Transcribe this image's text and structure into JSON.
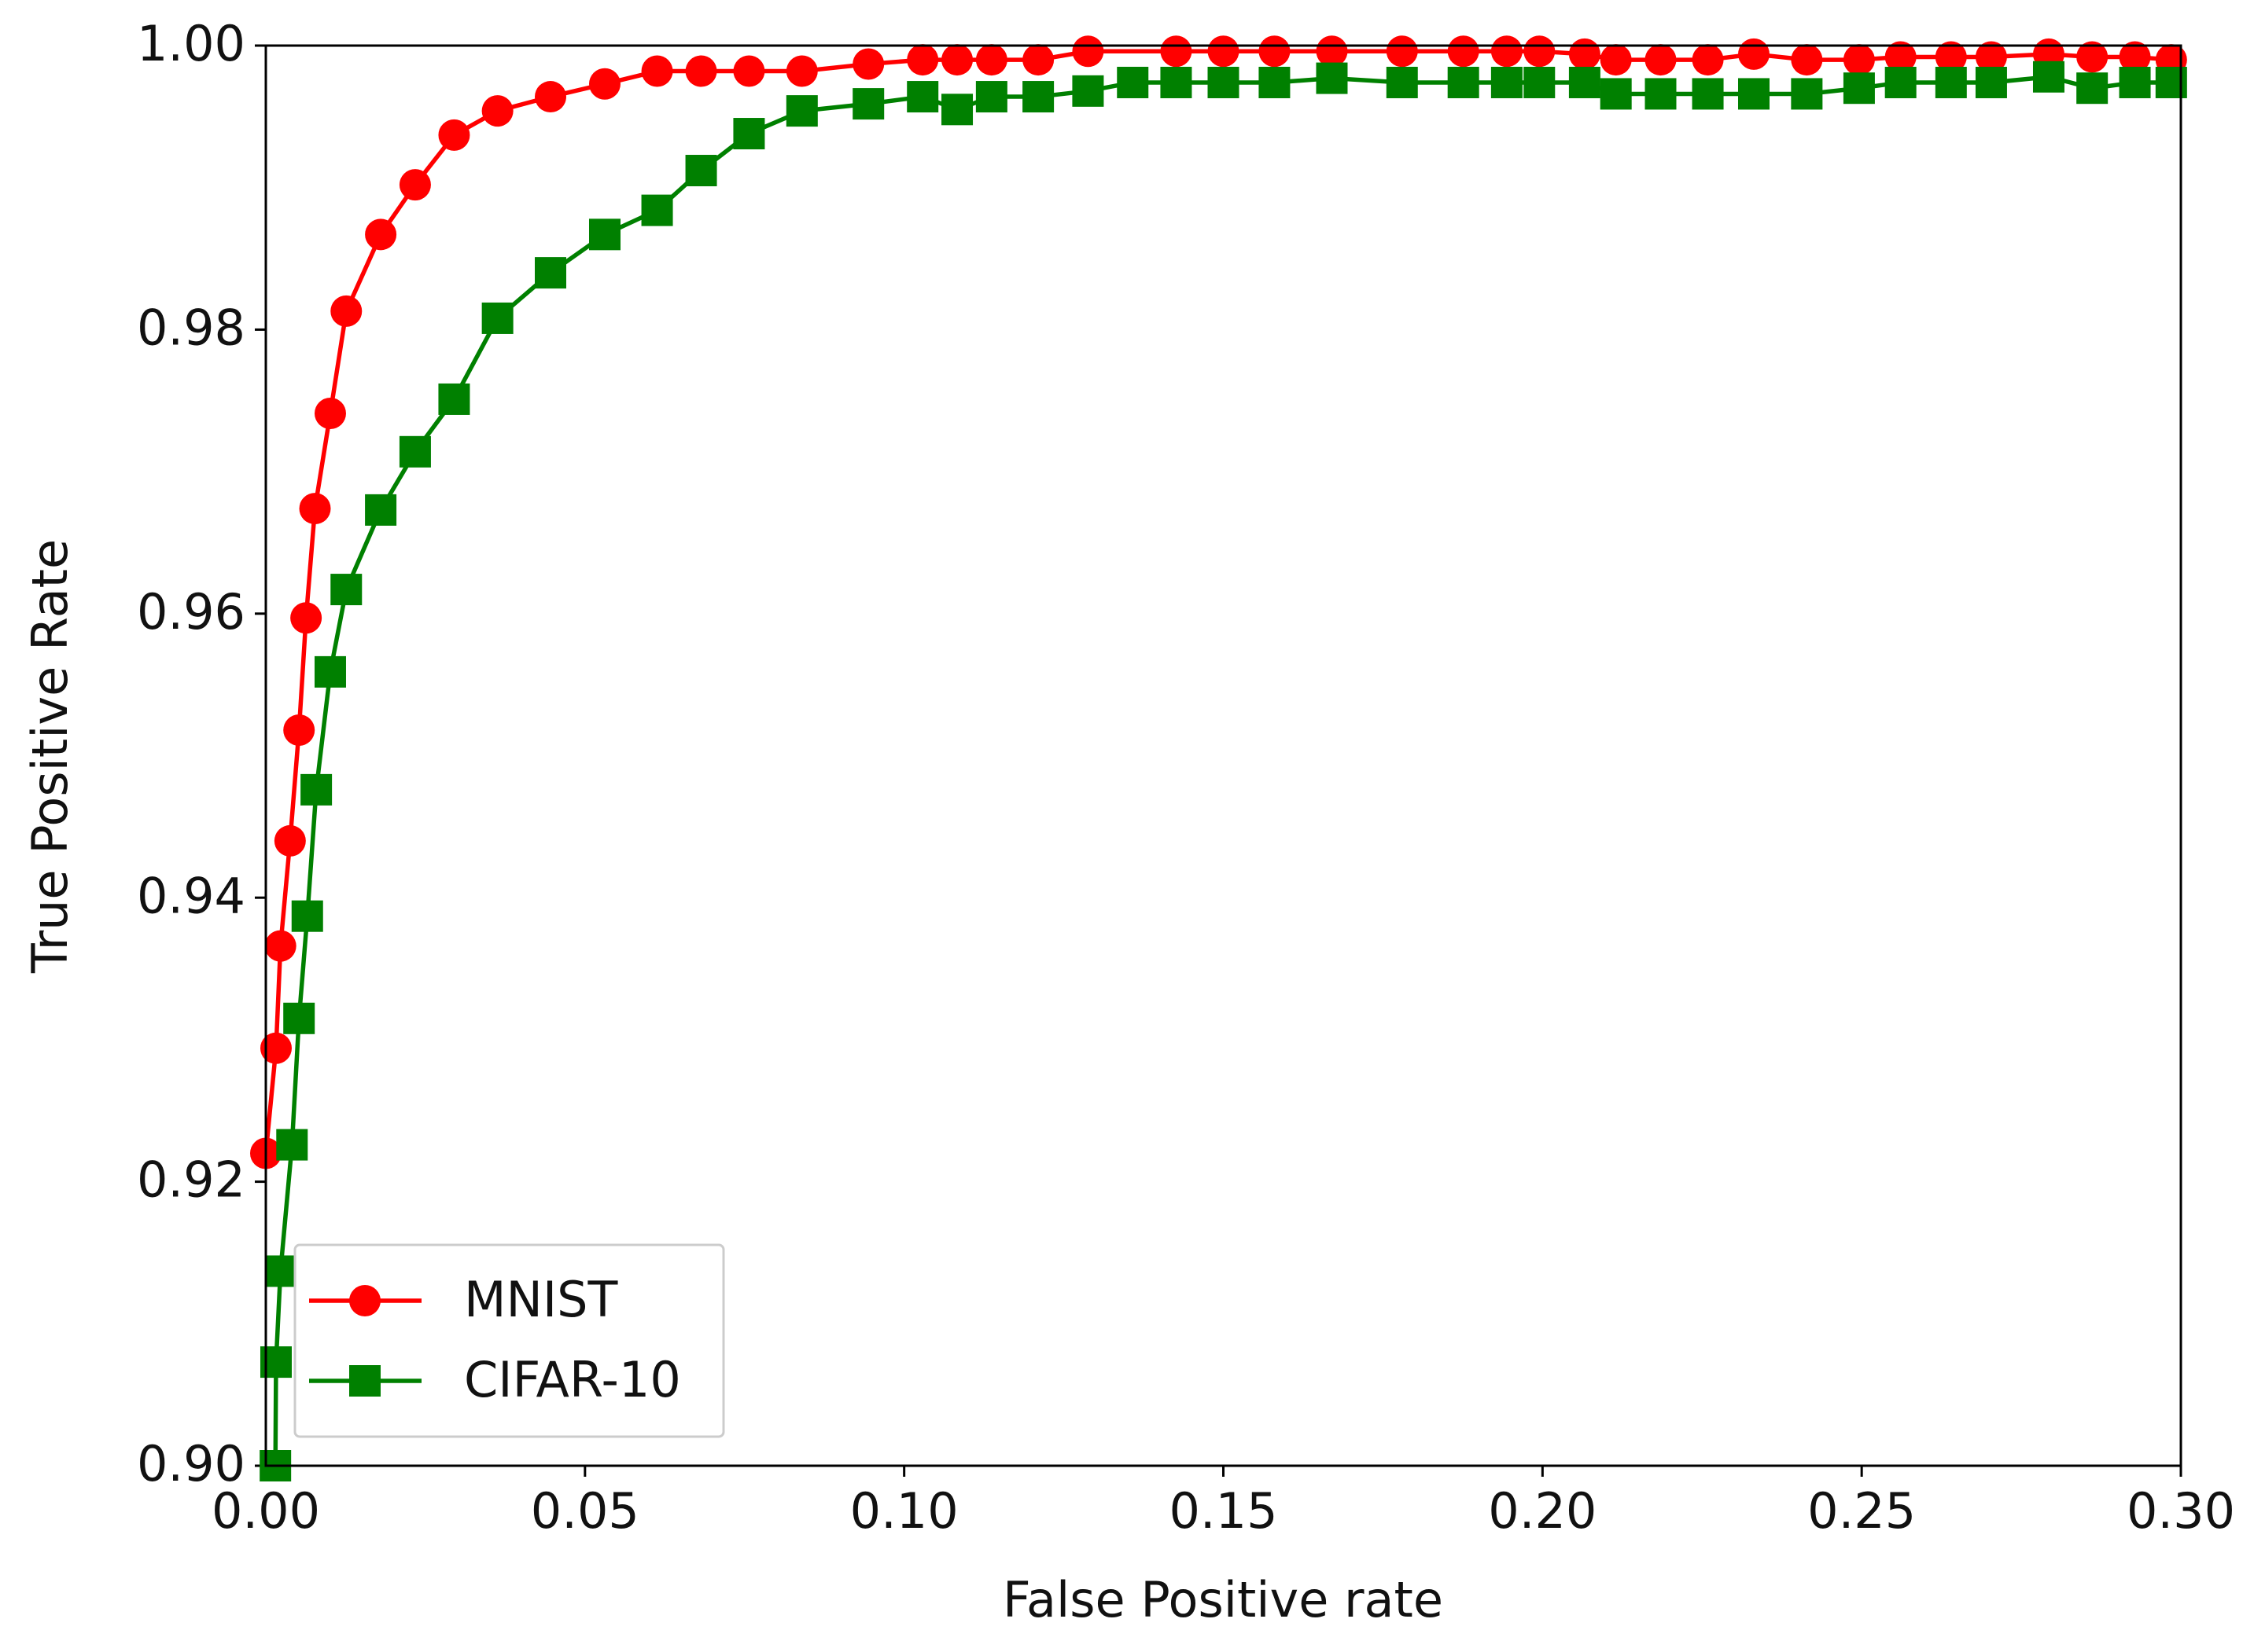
{
  "chart_data": {
    "type": "line",
    "xlabel": "False Positive rate",
    "ylabel": "True Positive Rate",
    "xlim": [
      0,
      0.3
    ],
    "ylim": [
      0.9,
      1.0
    ],
    "xticks": [
      {
        "value": 0,
        "label": "0.00"
      },
      0.05,
      {
        "value": 0.1,
        "label": "0.10"
      },
      0.15,
      {
        "value": 0.2,
        "label": "0.20"
      },
      0.25,
      {
        "value": 0.3,
        "label": "0.30"
      }
    ],
    "yticks": [
      {
        "value": 0.9,
        "label": "0.90"
      },
      0.92,
      0.94,
      0.96,
      0.98,
      {
        "value": 1.0,
        "label": "1.00"
      }
    ],
    "legend": "lower left",
    "series": [
      {
        "name": "MNIST",
        "color": "#ff0000",
        "marker": "circle",
        "x": [
          0.0,
          0.0016,
          0.0023,
          0.0038,
          0.0052,
          0.0063,
          0.0077,
          0.0101,
          0.0126,
          0.018,
          0.0234,
          0.0295,
          0.0363,
          0.0446,
          0.0531,
          0.0613,
          0.0682,
          0.0757,
          0.084,
          0.0944,
          0.1029,
          0.1083,
          0.1137,
          0.121,
          0.1288,
          0.1426,
          0.15,
          0.158,
          0.167,
          0.178,
          0.1876,
          0.1944,
          0.1995,
          0.2066,
          0.2115,
          0.2185,
          0.2259,
          0.2331,
          0.2414,
          0.2496,
          0.2561,
          0.264,
          0.2703,
          0.2793,
          0.2861,
          0.2928,
          0.2985
        ],
        "values": [
          0.922,
          0.9294,
          0.9366,
          0.944,
          0.9518,
          0.9597,
          0.9674,
          0.9741,
          0.9813,
          0.9867,
          0.9902,
          0.9937,
          0.9954,
          0.9964,
          0.9973,
          0.9982,
          0.9982,
          0.9982,
          0.9982,
          0.9987,
          0.999,
          0.999,
          0.999,
          0.999,
          0.9996,
          0.9996,
          0.9996,
          0.9996,
          0.9996,
          0.9996,
          0.9996,
          0.9996,
          0.9996,
          0.9994,
          0.999,
          0.999,
          0.999,
          0.9994,
          0.999,
          0.999,
          0.9992,
          0.9992,
          0.9992,
          0.9994,
          0.9992,
          0.9992,
          0.999
        ]
      },
      {
        "name": "CIFAR-10",
        "color": "#008000",
        "marker": "square",
        "x": [
          0.0015,
          0.0016,
          0.0023,
          0.0041,
          0.0052,
          0.0065,
          0.0079,
          0.0101,
          0.0126,
          0.018,
          0.0234,
          0.0295,
          0.0363,
          0.0446,
          0.0531,
          0.0613,
          0.0682,
          0.0757,
          0.084,
          0.0944,
          0.1029,
          0.1083,
          0.1137,
          0.121,
          0.1288,
          0.1358,
          0.1426,
          0.15,
          0.158,
          0.167,
          0.178,
          0.1876,
          0.1944,
          0.1995,
          0.2066,
          0.2115,
          0.2185,
          0.2259,
          0.2331,
          0.2414,
          0.2496,
          0.2561,
          0.264,
          0.2703,
          0.2793,
          0.2861,
          0.2928,
          0.2985
        ],
        "values": [
          0.9,
          0.9073,
          0.9137,
          0.9226,
          0.9315,
          0.9387,
          0.9476,
          0.9559,
          0.9617,
          0.9673,
          0.9714,
          0.9751,
          0.9808,
          0.984,
          0.9867,
          0.9884,
          0.9912,
          0.9938,
          0.9954,
          0.9959,
          0.9964,
          0.9955,
          0.9964,
          0.9964,
          0.9968,
          0.9974,
          0.9974,
          0.9974,
          0.9974,
          0.9977,
          0.9974,
          0.9974,
          0.9974,
          0.9974,
          0.9974,
          0.9966,
          0.9966,
          0.9966,
          0.9966,
          0.9966,
          0.997,
          0.9974,
          0.9974,
          0.9974,
          0.9978,
          0.997,
          0.9974,
          0.9974
        ]
      }
    ]
  }
}
